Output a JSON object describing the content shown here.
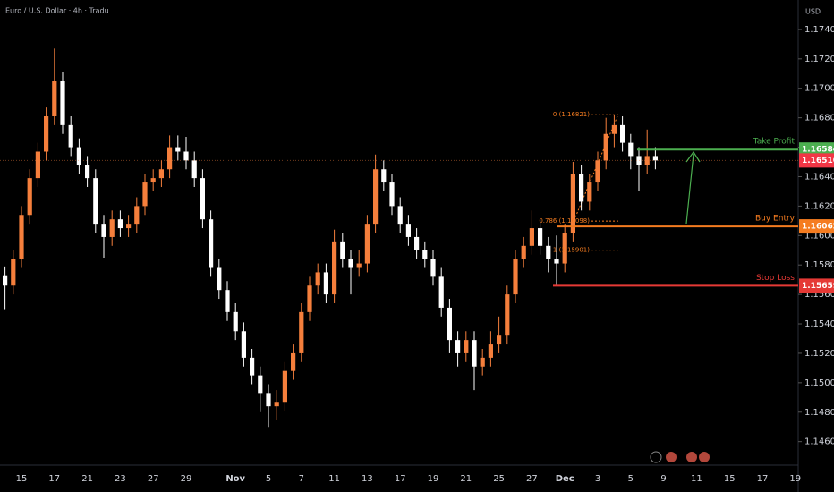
{
  "chart_data": {
    "type": "candlestick",
    "title": "Euro / U.S. Dollar · 4h · Tradu",
    "y_axis_label": "USD",
    "up_color": "#f57f3c",
    "down_color": "#ffffff",
    "categories": [
      null,
      null,
      "15",
      null,
      null,
      null,
      "17",
      null,
      null,
      null,
      "21",
      null,
      null,
      null,
      "23",
      null,
      null,
      null,
      "27",
      null,
      null,
      null,
      "29",
      null,
      null,
      null,
      null,
      null,
      "Nov",
      null,
      null,
      null,
      "5",
      null,
      null,
      null,
      "7",
      null,
      null,
      null,
      "11",
      null,
      null,
      null,
      "13",
      null,
      null,
      null,
      "17",
      null,
      null,
      null,
      "19",
      null,
      null,
      null,
      "21",
      null,
      null,
      null,
      "25",
      null,
      null,
      null,
      "27",
      null,
      null,
      null,
      "Dec",
      null,
      null,
      null,
      "3",
      null,
      null,
      null,
      "5",
      null,
      null,
      null,
      "9",
      null,
      null,
      null,
      "11",
      null,
      null,
      null,
      "15",
      null,
      null,
      null,
      "17",
      null,
      null,
      null,
      "19"
    ],
    "open": [
      1.1573,
      1.1566,
      1.1584,
      1.1614,
      1.1639,
      1.1657,
      1.1681,
      1.1705,
      1.1675,
      1.166,
      1.1648,
      1.1639,
      1.1608,
      1.1599,
      1.1611,
      1.1605,
      1.1608,
      1.162,
      1.1636,
      1.1639,
      1.1645,
      1.166,
      1.1657,
      1.1651,
      1.1639,
      1.1611,
      1.1578,
      1.1563,
      1.1548,
      1.1535,
      1.1517,
      1.1505,
      1.1493,
      1.1484,
      1.1487,
      1.1508,
      1.152,
      1.1548,
      1.1566,
      1.1575,
      1.156,
      1.1596,
      1.1584,
      1.1578,
      1.1581,
      1.1608,
      1.1645,
      1.1636,
      1.162,
      1.1608,
      1.1599,
      1.159,
      1.1584,
      1.1572,
      1.1551,
      1.1529,
      1.152,
      1.1529,
      1.1511,
      1.1517,
      1.1526,
      1.1532,
      1.156,
      1.1584,
      1.1593,
      1.1605,
      1.1593,
      1.1584,
      1.1581,
      1.1602,
      1.1642,
      1.1623,
      1.1636,
      1.1651,
      1.1669,
      1.1675,
      1.1663,
      1.1654,
      1.1648,
      1.1654,
      null,
      null,
      null,
      null,
      null,
      null,
      null,
      null,
      null,
      null,
      null,
      null,
      null,
      null,
      null,
      null,
      null
    ],
    "high": [
      1.1579,
      1.159,
      1.162,
      1.1645,
      1.1663,
      1.1687,
      1.1727,
      1.1711,
      1.1681,
      1.1666,
      1.1654,
      1.1645,
      1.1614,
      1.1617,
      1.1617,
      1.1614,
      1.1626,
      1.1642,
      1.1645,
      1.1651,
      1.1668,
      1.1668,
      1.1667,
      1.1657,
      1.1645,
      1.1617,
      1.1584,
      1.1569,
      1.1554,
      1.1541,
      1.1523,
      1.1511,
      1.1499,
      1.1495,
      1.1514,
      1.1526,
      1.1554,
      1.1572,
      1.1581,
      1.1581,
      1.1604,
      1.1602,
      1.159,
      1.159,
      1.1614,
      1.1655,
      1.1651,
      1.1642,
      1.1626,
      1.1614,
      1.1605,
      1.1596,
      1.159,
      1.1578,
      1.1557,
      1.1535,
      1.1535,
      1.1535,
      1.1523,
      1.1535,
      1.1545,
      1.1566,
      1.159,
      1.1599,
      1.1617,
      1.1611,
      1.1599,
      1.16,
      1.1608,
      1.165,
      1.1648,
      1.1642,
      1.1657,
      1.168,
      1.1682,
      1.1681,
      1.1669,
      1.166,
      1.1672,
      1.166,
      null,
      null,
      null,
      null,
      null,
      null,
      null,
      null,
      null,
      null,
      null,
      null,
      null,
      null,
      null,
      null,
      null
    ],
    "low": [
      1.155,
      1.156,
      1.1578,
      1.1608,
      1.1633,
      1.1651,
      1.1675,
      1.1669,
      1.1654,
      1.1642,
      1.1633,
      1.1602,
      1.1585,
      1.1593,
      1.1599,
      1.1599,
      1.1602,
      1.1614,
      1.163,
      1.1633,
      1.1639,
      1.1651,
      1.1645,
      1.1633,
      1.1605,
      1.1572,
      1.1557,
      1.1542,
      1.1529,
      1.1511,
      1.1499,
      1.148,
      1.147,
      1.1475,
      1.1481,
      1.1502,
      1.1514,
      1.1542,
      1.156,
      1.1554,
      1.1554,
      1.1578,
      1.156,
      1.1572,
      1.1575,
      1.1602,
      1.163,
      1.1614,
      1.1602,
      1.1593,
      1.1584,
      1.1578,
      1.1566,
      1.1545,
      1.152,
      1.1511,
      1.1514,
      1.1495,
      1.1505,
      1.1511,
      1.152,
      1.1526,
      1.1554,
      1.1578,
      1.1587,
      1.1587,
      1.1575,
      1.1566,
      1.1575,
      1.1596,
      1.1617,
      1.1617,
      1.163,
      1.1645,
      1.166,
      1.1657,
      1.1645,
      1.163,
      1.1642,
      1.1645,
      null,
      null,
      null,
      null,
      null,
      null,
      null,
      null,
      null,
      null,
      null,
      null,
      null,
      null,
      null,
      null,
      null
    ],
    "close": [
      1.1566,
      1.1584,
      1.1614,
      1.1639,
      1.1657,
      1.1681,
      1.1705,
      1.1675,
      1.166,
      1.1648,
      1.1639,
      1.1608,
      1.1599,
      1.1611,
      1.1605,
      1.1608,
      1.162,
      1.1636,
      1.1639,
      1.1645,
      1.166,
      1.1657,
      1.1651,
      1.1639,
      1.1611,
      1.1578,
      1.1563,
      1.1548,
      1.1535,
      1.1517,
      1.1505,
      1.1493,
      1.1484,
      1.1487,
      1.1508,
      1.152,
      1.1548,
      1.1566,
      1.1575,
      1.156,
      1.1596,
      1.1584,
      1.1578,
      1.1581,
      1.1608,
      1.1645,
      1.1636,
      1.162,
      1.1608,
      1.1599,
      1.159,
      1.1584,
      1.1572,
      1.1551,
      1.1529,
      1.152,
      1.1529,
      1.1511,
      1.1517,
      1.1526,
      1.1532,
      1.156,
      1.1584,
      1.1593,
      1.1605,
      1.1593,
      1.1584,
      1.1581,
      1.1602,
      1.1642,
      1.1623,
      1.1636,
      1.1651,
      1.1669,
      1.1675,
      1.1663,
      1.1654,
      1.1648,
      1.1654,
      1.1651,
      null,
      null,
      null,
      null,
      null,
      null,
      null,
      null,
      null,
      null,
      null,
      null,
      null,
      null,
      null,
      null,
      null
    ],
    "ylim": [
      1.1444,
      1.176
    ],
    "yticks": [
      {
        "value": 1.174,
        "label": "1.17400"
      },
      {
        "value": 1.172,
        "label": "1.17200"
      },
      {
        "value": 1.17,
        "label": "1.17000"
      },
      {
        "value": 1.168,
        "label": "1.16800"
      },
      {
        "value": 1.166,
        "label": "1.16600"
      },
      {
        "value": 1.164,
        "label": "1.16400"
      },
      {
        "value": 1.162,
        "label": "1.16200"
      },
      {
        "value": 1.16,
        "label": "1.16000"
      },
      {
        "value": 1.158,
        "label": "1.15800"
      },
      {
        "value": 1.156,
        "label": "1.15600"
      },
      {
        "value": 1.154,
        "label": "1.15400"
      },
      {
        "value": 1.152,
        "label": "1.15200"
      },
      {
        "value": 1.15,
        "label": "1.15000"
      },
      {
        "value": 1.148,
        "label": "1.14800"
      },
      {
        "value": 1.146,
        "label": "1.14600"
      }
    ],
    "current_price": {
      "value": 1.1651,
      "label": "1.16510",
      "color": "#f23645"
    },
    "levels": [
      {
        "name": "Take Profit",
        "value": 1.16584,
        "color": "#4caf50"
      },
      {
        "name": "Buy Entry",
        "value": 1.16062,
        "color": "#f57c20"
      },
      {
        "name": "Stop Loss",
        "value": 1.15659,
        "color": "#e53935"
      }
    ],
    "annotations": [
      {
        "text": "0 (1.16821)",
        "value": 1.16821
      },
      {
        "text": "0.786 (1.16098)",
        "value": 1.16098
      },
      {
        "text": "1 (1.15901)",
        "value": 1.15901
      }
    ]
  }
}
